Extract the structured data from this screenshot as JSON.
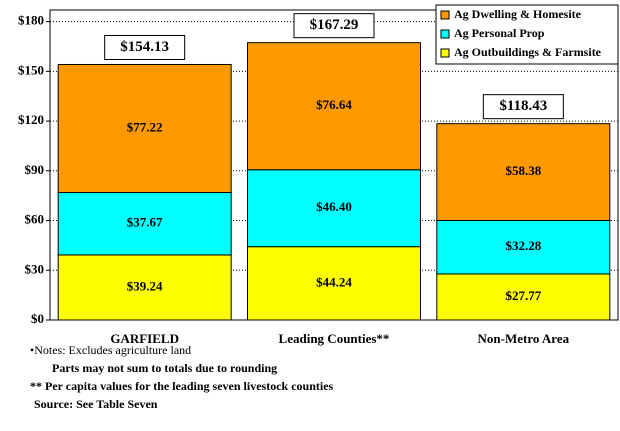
{
  "chart_data": {
    "type": "stacked_bar",
    "categories": [
      "GARFIELD",
      "Leading Counties**",
      "Non-Metro Area"
    ],
    "series": [
      {
        "name": "Ag Outbuildings & Farmsite",
        "color": "#ffff00",
        "values": [
          39.24,
          44.24,
          27.77
        ],
        "value_labels": [
          "$39.24",
          "$44.24",
          "$27.77"
        ]
      },
      {
        "name": "Ag Personal Prop",
        "color": "#00ffff",
        "values": [
          37.67,
          46.4,
          32.28
        ],
        "value_labels": [
          "$37.67",
          "$46.40",
          "$32.28"
        ]
      },
      {
        "name": "Ag Dwelling & Homesite",
        "color": "#ff9900",
        "values": [
          77.22,
          76.64,
          58.38
        ],
        "value_labels": [
          "$77.22",
          "$76.64",
          "$58.38"
        ]
      }
    ],
    "totals": {
      "values": [
        154.13,
        167.29,
        118.43
      ],
      "value_labels": [
        "$154.13",
        "$167.29",
        "$118.43"
      ]
    },
    "ylim": [
      0,
      187
    ],
    "yticks": [
      {
        "value": 0,
        "label": "$0"
      },
      {
        "value": 30,
        "label": "$30"
      },
      {
        "value": 60,
        "label": "$60"
      },
      {
        "value": 90,
        "label": "$90"
      },
      {
        "value": 120,
        "label": "$120"
      },
      {
        "value": 150,
        "label": "$150"
      },
      {
        "value": 180,
        "label": "$180"
      }
    ],
    "grid": true,
    "legend": "top-right",
    "notes": [
      "•Notes:  Excludes agriculture land",
      "Parts may not sum to totals due to rounding",
      "** Per capita values for the leading seven livestock counties",
      "Source:  See Table Seven"
    ]
  }
}
